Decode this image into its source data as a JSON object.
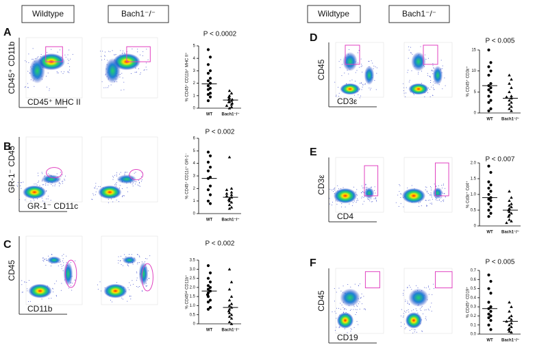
{
  "header": {
    "left": [
      "Wildtype",
      "Bach1⁻/⁻"
    ],
    "right": [
      "Wildtype",
      "Bach1⁻/⁻"
    ]
  },
  "chart_data": [
    {
      "type": "strip",
      "panel": "A",
      "title": "P < 0.0002",
      "ylabel": "% CD45⁺ CD11b⁺ MHC II⁺",
      "flow_ylabel": "CD45⁺ CD11b",
      "flow_xlabel": "CD45⁺ MHC II",
      "categories": [
        "WT",
        "Bach1⁻/⁻"
      ],
      "series": [
        {
          "name": "WT",
          "marker": "circle",
          "color": "#000000",
          "values": [
            4.7,
            4.1,
            3.5,
            3.0,
            2.8,
            2.4,
            2.2,
            2.0,
            1.8,
            1.6,
            1.5,
            1.2,
            1.1,
            0.9,
            0.6
          ]
        },
        {
          "name": "Bach1⁻/⁻",
          "marker": "triangle",
          "color": "#000000",
          "values": [
            1.4,
            1.2,
            1.0,
            0.9,
            0.8,
            0.7,
            0.7,
            0.6,
            0.5,
            0.5,
            0.4,
            0.3,
            0.2,
            0.1,
            0.0
          ]
        }
      ],
      "means": [
        1.95,
        0.65
      ],
      "ylim": [
        0,
        5
      ],
      "yticks": [
        0,
        1,
        2,
        3,
        4,
        5
      ]
    },
    {
      "type": "strip",
      "panel": "B",
      "title": "P < 0.002",
      "ylabel": "% CD45⁺ CD11c⁺ GR-1⁻",
      "flow_ylabel": "GR-1⁻ CD45",
      "flow_xlabel": "GR-1⁻ CD11c",
      "categories": [
        "WT",
        "Bach1⁻/⁻"
      ],
      "series": [
        {
          "name": "WT",
          "marker": "circle",
          "color": "#000000",
          "values": [
            4.9,
            4.6,
            4.1,
            3.7,
            3.4,
            2.9,
            2.8,
            2.2,
            1.9,
            1.5,
            1.0,
            0.8
          ]
        },
        {
          "name": "Bach1⁻/⁻",
          "marker": "triangle",
          "color": "#000000",
          "values": [
            4.5,
            2.0,
            1.9,
            1.7,
            1.6,
            1.5,
            1.4,
            1.3,
            1.2,
            1.1,
            1.0,
            0.9,
            0.7,
            0.5,
            0.4
          ]
        }
      ],
      "means": [
        2.8,
        1.3
      ],
      "ylim": [
        0,
        6
      ],
      "yticks": [
        0,
        1,
        2,
        3,
        4,
        5,
        6
      ]
    },
    {
      "type": "strip",
      "panel": "C",
      "title": "P < 0.002",
      "ylabel": "% CD45ⁱⁿᵗ CD11b⁺",
      "flow_ylabel": "CD45",
      "flow_xlabel": "CD11b",
      "categories": [
        "WT",
        "Bach1⁻/⁻"
      ],
      "series": [
        {
          "name": "WT",
          "marker": "circle",
          "color": "#000000",
          "values": [
            3.2,
            2.8,
            2.5,
            2.3,
            2.1,
            2.0,
            1.9,
            1.8,
            1.7,
            1.6,
            1.5,
            1.3,
            1.2,
            0.9,
            0.8
          ]
        },
        {
          "name": "Bach1⁻/⁻",
          "marker": "triangle",
          "color": "#000000",
          "values": [
            3.0,
            2.3,
            1.9,
            1.5,
            1.3,
            1.1,
            1.0,
            0.9,
            0.8,
            0.7,
            0.6,
            0.5,
            0.4,
            0.3,
            0.1,
            0.0
          ]
        }
      ],
      "means": [
        1.8,
        0.9
      ],
      "ylim": [
        0,
        3.5
      ],
      "yticks": [
        0,
        0.5,
        {
          "value": 1,
          "label": "1.0"
        },
        1.5,
        {
          "value": 2,
          "label": "2.0"
        },
        2.5,
        {
          "value": 3,
          "label": "3.0"
        },
        3.5
      ]
    },
    {
      "type": "strip",
      "panel": "D",
      "title": "P < 0.005",
      "ylabel": "% CD45⁺ CD3ε⁺",
      "flow_ylabel": "CD45",
      "flow_xlabel": "CD3ε",
      "categories": [
        "WT",
        "Bach1⁻/⁻"
      ],
      "series": [
        {
          "name": "WT",
          "marker": "circle",
          "color": "#000000",
          "values": [
            15,
            12,
            11,
            10,
            9,
            7,
            6.5,
            6,
            5.5,
            5,
            4,
            3,
            2.5,
            1,
            0.5
          ]
        },
        {
          "name": "Bach1⁻/⁻",
          "marker": "triangle",
          "color": "#000000",
          "values": [
            9,
            8,
            7,
            6,
            5,
            4,
            3.8,
            3.5,
            3,
            2.5,
            2,
            1.5,
            1,
            0.5
          ]
        }
      ],
      "means": [
        6.5,
        3.5
      ],
      "ylim": [
        0,
        15
      ],
      "yticks": [
        0,
        5,
        10,
        15
      ]
    },
    {
      "type": "strip",
      "panel": "E",
      "title": "P < 0.007",
      "ylabel": "% Cd3ε⁺ Cd4⁺",
      "flow_ylabel": "CD3ε",
      "flow_xlabel": "CD4",
      "categories": [
        "WT",
        "Bach1⁻/⁻"
      ],
      "series": [
        {
          "name": "WT",
          "marker": "circle",
          "color": "#000000",
          "values": [
            1.9,
            1.7,
            1.4,
            1.3,
            1.2,
            1.1,
            1.0,
            0.9,
            0.85,
            0.8,
            0.7,
            0.6,
            0.5,
            0.4,
            0.3
          ]
        },
        {
          "name": "Bach1⁻/⁻",
          "marker": "triangle",
          "color": "#000000",
          "values": [
            1.1,
            0.9,
            0.8,
            0.7,
            0.65,
            0.6,
            0.55,
            0.5,
            0.45,
            0.4,
            0.35,
            0.3,
            0.2,
            0.15,
            0.1
          ]
        }
      ],
      "means": [
        0.9,
        0.5
      ],
      "ylim": [
        0,
        2
      ],
      "yticks": [
        0,
        0.5,
        {
          "value": 1,
          "label": "1.0"
        },
        1.5,
        {
          "value": 2,
          "label": "2.0"
        }
      ]
    },
    {
      "type": "strip",
      "panel": "F",
      "title": "P < 0.005",
      "ylabel": "% CD45⁺ CD19⁺",
      "flow_ylabel": "CD45",
      "flow_xlabel": "CD19",
      "categories": [
        "WT",
        "Bach1⁻/⁻"
      ],
      "series": [
        {
          "name": "WT",
          "marker": "circle",
          "color": "#000000",
          "values": [
            0.65,
            0.58,
            0.5,
            0.45,
            0.35,
            0.3,
            0.28,
            0.25,
            0.22,
            0.2,
            0.18,
            0.15,
            0.1,
            0.05
          ]
        },
        {
          "name": "Bach1⁻/⁻",
          "marker": "triangle",
          "color": "#000000",
          "values": [
            0.35,
            0.3,
            0.25,
            0.2,
            0.18,
            0.16,
            0.14,
            0.12,
            0.1,
            0.08,
            0.06,
            0.05,
            0.03,
            0.02
          ]
        }
      ],
      "means": [
        0.28,
        0.14
      ],
      "ylim": [
        0,
        0.7
      ],
      "yticks": [
        {
          "value": 0,
          "label": "0.0"
        },
        0.1,
        0.2,
        0.3,
        0.4,
        0.5,
        0.6,
        0.7
      ]
    }
  ]
}
